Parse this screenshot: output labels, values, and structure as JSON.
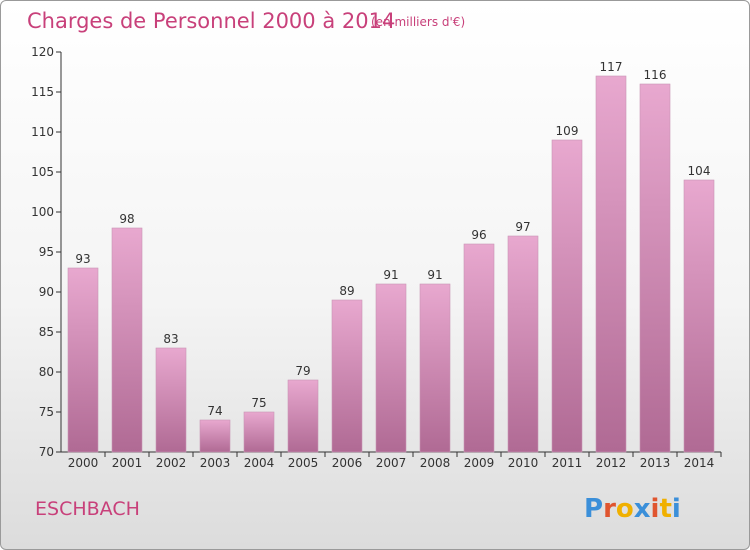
{
  "header": {
    "title": "Charges de Personnel 2000 à 2014",
    "subtitle": "(en milliers d'€)"
  },
  "footer": {
    "commune": "ESCHBACH",
    "logo_text": "Proxiti"
  },
  "colors": {
    "title": "#c8407a",
    "bar_top": "#e8a8cf",
    "bar_bottom": "#b06a94",
    "axis": "#333333",
    "logo_letters": [
      "#3b8fd9",
      "#e0552f",
      "#f0b000",
      "#3b8fd9",
      "#e0552f",
      "#f0b000",
      "#3b8fd9"
    ]
  },
  "chart_data": {
    "type": "bar",
    "title": "Charges de Personnel 2000 à 2014",
    "subtitle": "(en milliers d'€)",
    "categories": [
      "2000",
      "2001",
      "2002",
      "2003",
      "2004",
      "2005",
      "2006",
      "2007",
      "2008",
      "2009",
      "2010",
      "2011",
      "2012",
      "2013",
      "2014"
    ],
    "values": [
      93,
      98,
      83,
      74,
      75,
      79,
      89,
      91,
      91,
      96,
      97,
      109,
      117,
      116,
      104
    ],
    "ylim": [
      70,
      120
    ],
    "yticks": [
      70,
      75,
      80,
      85,
      90,
      95,
      100,
      105,
      110,
      115,
      120
    ],
    "xlabel": "",
    "ylabel": "",
    "grid": false,
    "legend": "none"
  }
}
